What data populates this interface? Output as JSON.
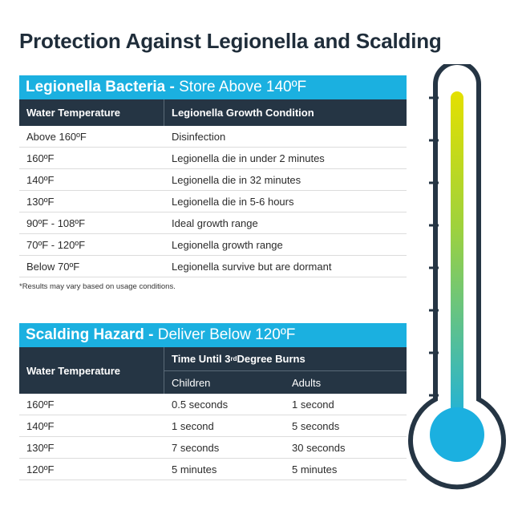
{
  "title": "Protection Against Legionella and Scalding",
  "legionella": {
    "heading_bold": "Legionella Bacteria",
    "heading_sep": " - ",
    "heading_rest": "Store Above 140ºF",
    "col1": "Water Temperature",
    "col2": "Legionella Growth Condition",
    "rows": [
      {
        "temp": "Above 160ºF",
        "condition": "Disinfection"
      },
      {
        "temp": "160ºF",
        "condition": "Legionella die in under 2 minutes"
      },
      {
        "temp": "140ºF",
        "condition": "Legionella die in 32 minutes"
      },
      {
        "temp": "130ºF",
        "condition": "Legionella die in 5-6 hours"
      },
      {
        "temp": "90ºF - 108ºF",
        "condition": "Ideal growth range"
      },
      {
        "temp": "70ºF - 120ºF",
        "condition": "Legionella growth range"
      },
      {
        "temp": "Below 70ºF",
        "condition": "Legionella survive but are dormant"
      }
    ],
    "footnote": "*Results may vary based on usage conditions."
  },
  "scalding": {
    "heading_bold": "Scalding Hazard",
    "heading_sep": " - ",
    "heading_rest": "Deliver Below 120ºF",
    "col1": "Water Temperature",
    "col_group_pre": "Time Until 3",
    "col_group_sup": "rd",
    "col_group_post": " Degree Burns",
    "sub_children": "Children",
    "sub_adults": "Adults",
    "rows": [
      {
        "temp": "160ºF",
        "children": "0.5 seconds",
        "adults": "1 second"
      },
      {
        "temp": "140ºF",
        "children": "1 second",
        "adults": "5 seconds"
      },
      {
        "temp": "130ºF",
        "children": "7 seconds",
        "adults": "30 seconds"
      },
      {
        "temp": "120ºF",
        "children": "5 minutes",
        "adults": "5 minutes"
      }
    ]
  },
  "thermometer": {
    "icon": "thermometer-icon",
    "outline_color": "#253544",
    "gradient_top": "#e4e000",
    "gradient_bottom": "#1bb0e0"
  }
}
